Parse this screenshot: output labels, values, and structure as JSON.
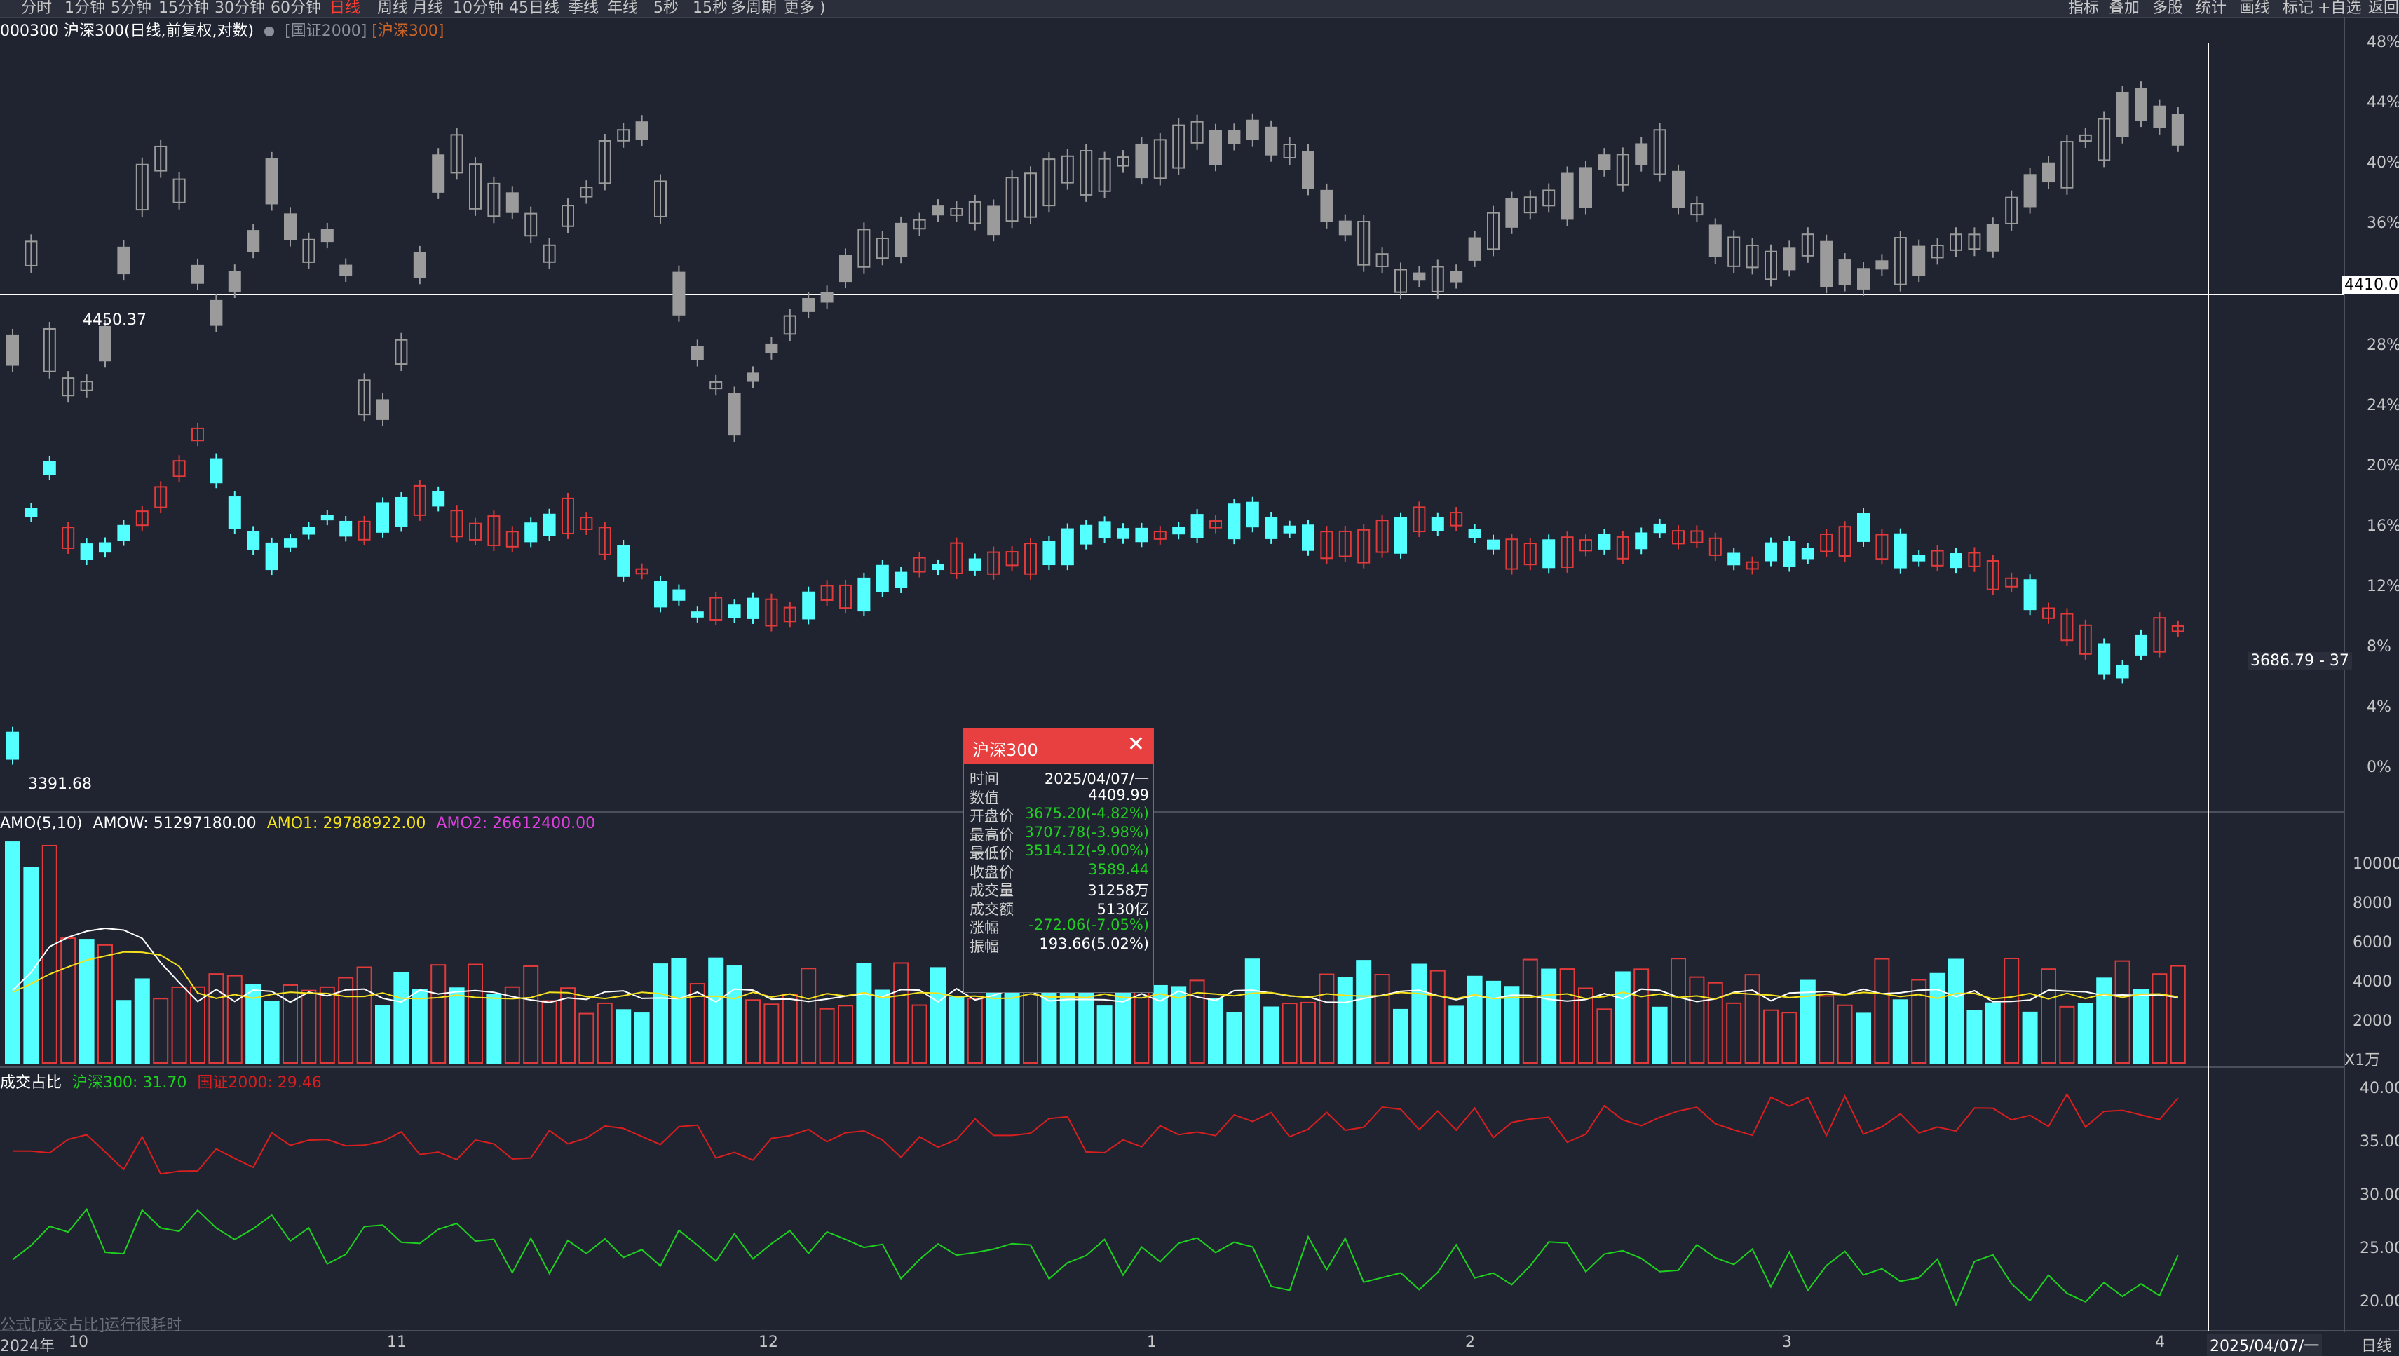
{
  "toolbar": {
    "left_items": [
      "分时",
      "1分钟",
      "5分钟",
      "15分钟",
      "30分钟",
      "60分钟",
      "日线",
      "周线",
      "月线",
      "10分钟",
      "45日线",
      "季线",
      "年线",
      "5秒",
      "15秒",
      "多周期",
      "更多 )"
    ],
    "active_index": 6,
    "right_items": [
      "指标",
      "叠加",
      "多股",
      "统计",
      "画线",
      "标记",
      "+自选",
      "返回"
    ]
  },
  "header": {
    "title": "000300 沪深300(日线,前复权,对数)",
    "overlay1": "[国证2000]",
    "overlay2": "[沪深300]"
  },
  "main_axis": {
    "labels": [
      "48%",
      "44%",
      "40%",
      "36%",
      "28%",
      "24%",
      "20%",
      "16%",
      "12%",
      "8%",
      "4%",
      "0%"
    ],
    "crosshair_value": "4410.0",
    "price_tag": "3686.79 - 37",
    "high_label": "4450.37",
    "low_label": "3391.68"
  },
  "amo_header": {
    "title": "AMO(5,10)",
    "amow": "AMOW: 51297180.00",
    "amo1": "AMO1: 29788922.00",
    "amo2": "AMO2: 26612400.00"
  },
  "amo_axis": {
    "labels": [
      "10000",
      "8000",
      "6000",
      "4000",
      "2000"
    ],
    "unit": "X1万"
  },
  "ratio_header": {
    "title": "成交占比",
    "hs300": "沪深300: 31.70",
    "gz2000": "国证2000: 29.46"
  },
  "ratio_axis": {
    "labels": [
      "40.00",
      "35.00",
      "30.00",
      "25.00",
      "20.00"
    ]
  },
  "footer_note": "公式[成交占比]运行很耗时",
  "x_axis": {
    "labels": [
      "2024年",
      "10",
      "11",
      "12",
      "1",
      "2",
      "3",
      "4"
    ],
    "cursor_date": "2025/04/07/一",
    "period": "日线"
  },
  "popup": {
    "title": "沪深300",
    "rows": [
      {
        "label": "时间",
        "value": "2025/04/07/一",
        "down": false
      },
      {
        "label": "数值",
        "value": "4409.99",
        "down": false
      },
      {
        "label": "开盘价",
        "value": "3675.20(-4.82%)",
        "down": true
      },
      {
        "label": "最高价",
        "value": "3707.78(-3.98%)",
        "down": true
      },
      {
        "label": "最低价",
        "value": "3514.12(-9.00%)",
        "down": true
      },
      {
        "label": "收盘价",
        "value": "3589.44",
        "down": true
      },
      {
        "label": "成交量",
        "value": "31258万",
        "down": false
      },
      {
        "label": "成交额",
        "value": "5130亿",
        "down": false
      },
      {
        "label": "涨幅",
        "value": "-272.06(-7.05%)",
        "down": true
      },
      {
        "label": "振幅",
        "value": "193.66(5.02%)",
        "down": false
      }
    ]
  },
  "colors": {
    "background": "#1f2430",
    "up": "#e03a3a",
    "down": "#54ffff",
    "gray_candle": "#9b9b9b",
    "ma_white": "#ffffff",
    "ma_yellow": "#f5e11c",
    "line_red": "#d81e1e",
    "line_green": "#1fd11f",
    "popup_header": "#e84040"
  }
}
